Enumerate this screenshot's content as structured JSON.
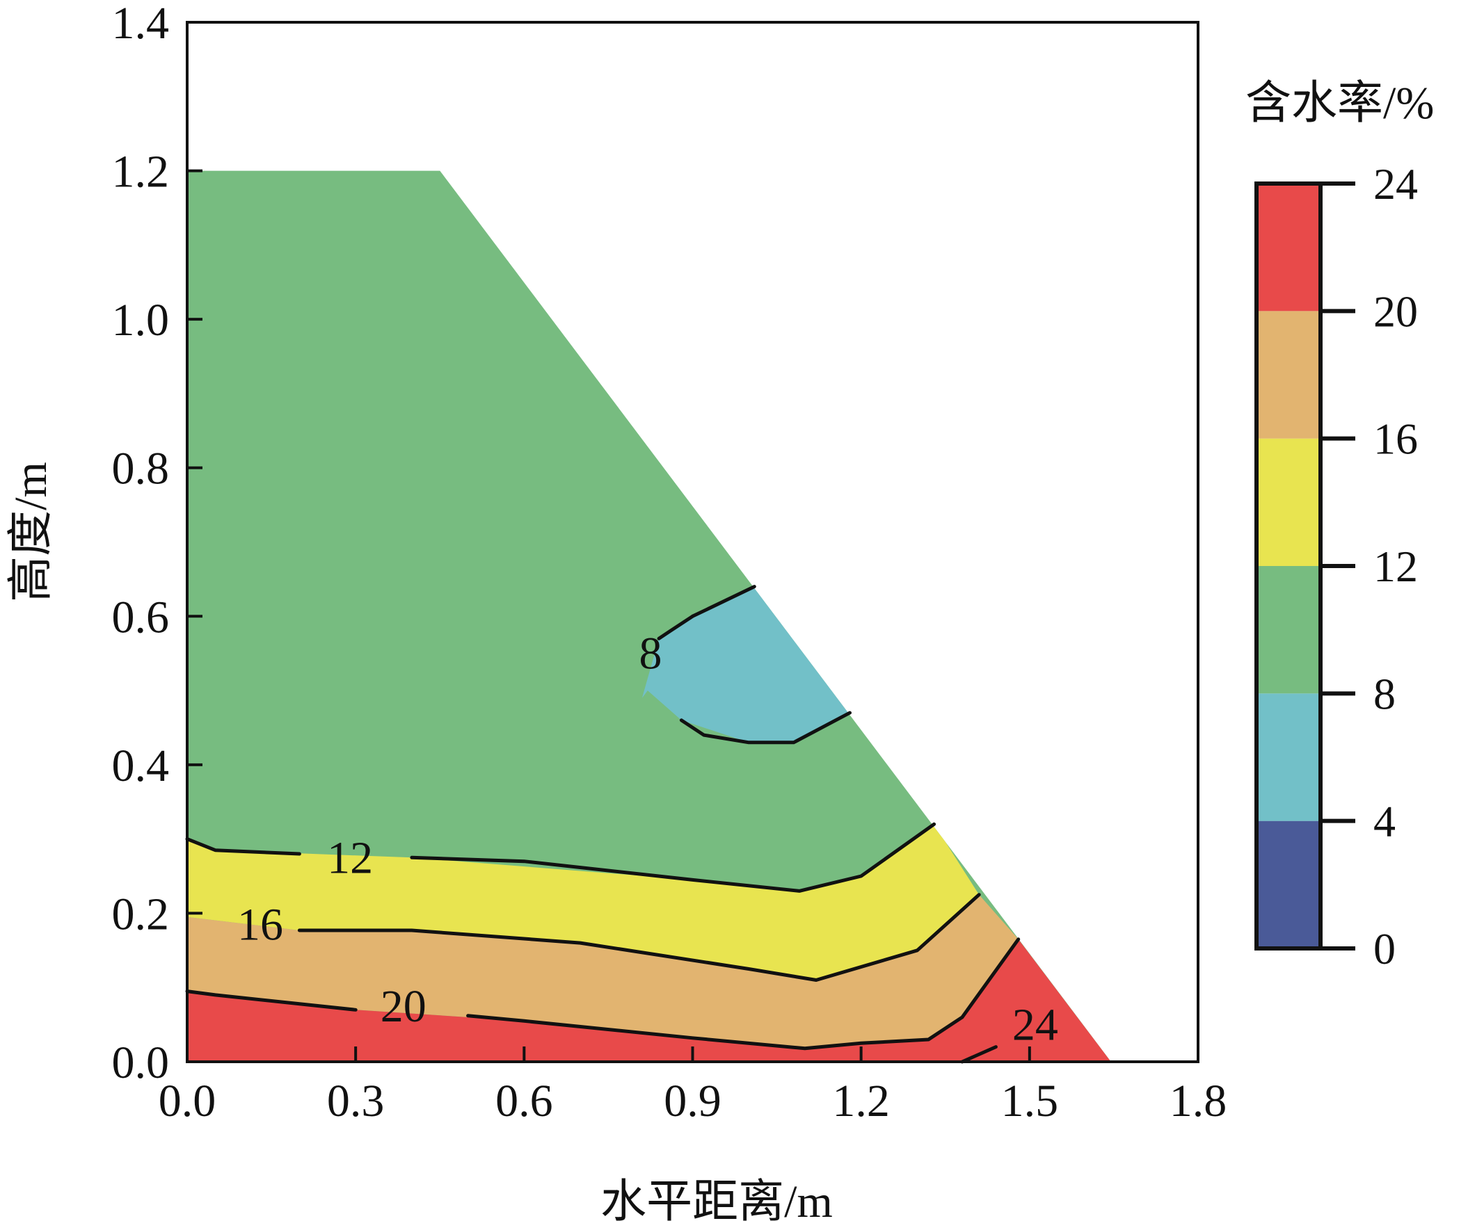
{
  "chart_data": {
    "type": "heatmap",
    "title": "",
    "xlabel": "水平距离/m",
    "ylabel": "高度/m",
    "xlim": [
      0.0,
      1.8
    ],
    "ylim": [
      0.0,
      1.4
    ],
    "x_ticks": [
      "0.0",
      "0.3",
      "0.6",
      "0.9",
      "1.2",
      "1.5",
      "1.8"
    ],
    "y_ticks": [
      "0.0",
      "0.2",
      "0.4",
      "0.6",
      "0.8",
      "1.0",
      "1.2",
      "1.4"
    ],
    "grid": false,
    "domain_outline": [
      [
        0.0,
        0.0
      ],
      [
        0.0,
        1.2
      ],
      [
        0.45,
        1.2
      ],
      [
        1.645,
        0.0
      ]
    ],
    "colorbar": {
      "title": "含水率/%",
      "levels": [
        0,
        4,
        8,
        12,
        16,
        20,
        24
      ],
      "tick_labels": [
        "0",
        "4",
        "8",
        "12",
        "16",
        "20",
        "24"
      ],
      "colors": [
        "#4a5a98",
        "#72c0c8",
        "#77bc80",
        "#e8e450",
        "#e2b470",
        "#e84a4a"
      ],
      "placement": "right"
    },
    "bands": [
      {
        "range": [
          4,
          8
        ],
        "color": "#72c0c8",
        "polygon": [
          [
            0.81,
            0.49
          ],
          [
            0.84,
            0.57
          ],
          [
            0.9,
            0.6
          ],
          [
            1.01,
            0.64
          ],
          [
            1.18,
            0.47
          ],
          [
            1.08,
            0.43
          ],
          [
            1.0,
            0.43
          ],
          [
            0.88,
            0.46
          ],
          [
            0.82,
            0.5
          ]
        ]
      },
      {
        "range": [
          8,
          12
        ],
        "color": "#77bc80"
      },
      {
        "range": [
          12,
          16
        ],
        "color": "#e8e450",
        "polygon": [
          [
            0.0,
            0.3
          ],
          [
            0.05,
            0.285
          ],
          [
            0.4,
            0.275
          ],
          [
            0.9,
            0.245
          ],
          [
            1.09,
            0.23
          ],
          [
            1.2,
            0.25
          ],
          [
            1.33,
            0.32
          ],
          [
            1.41,
            0.225
          ],
          [
            1.3,
            0.15
          ],
          [
            1.12,
            0.11
          ],
          [
            1.0,
            0.125
          ],
          [
            0.7,
            0.16
          ],
          [
            0.4,
            0.177
          ],
          [
            0.2,
            0.177
          ],
          [
            0.0,
            0.195
          ]
        ]
      },
      {
        "range": [
          16,
          20
        ],
        "color": "#e2b470",
        "polygon": [
          [
            0.0,
            0.195
          ],
          [
            0.2,
            0.177
          ],
          [
            0.4,
            0.177
          ],
          [
            0.7,
            0.16
          ],
          [
            1.0,
            0.125
          ],
          [
            1.12,
            0.11
          ],
          [
            1.3,
            0.15
          ],
          [
            1.41,
            0.225
          ],
          [
            1.48,
            0.165
          ],
          [
            1.38,
            0.06
          ],
          [
            1.32,
            0.03
          ],
          [
            1.2,
            0.025
          ],
          [
            1.1,
            0.018
          ],
          [
            0.9,
            0.032
          ],
          [
            0.6,
            0.055
          ],
          [
            0.3,
            0.07
          ],
          [
            0.05,
            0.09
          ],
          [
            0.0,
            0.095
          ]
        ]
      },
      {
        "range": [
          20,
          24
        ],
        "color": "#e84a4a",
        "polygon": [
          [
            0.0,
            0.095
          ],
          [
            0.05,
            0.09
          ],
          [
            0.3,
            0.07
          ],
          [
            0.6,
            0.055
          ],
          [
            0.9,
            0.032
          ],
          [
            1.1,
            0.018
          ],
          [
            1.2,
            0.025
          ],
          [
            1.32,
            0.03
          ],
          [
            1.38,
            0.06
          ],
          [
            1.48,
            0.165
          ],
          [
            1.645,
            0.0
          ],
          [
            0.0,
            0.0
          ]
        ]
      }
    ],
    "contours": [
      {
        "level": 8,
        "label": "8",
        "label_at": [
          0.825,
          0.55
        ],
        "points": [
          [
            0.9,
            0.6
          ],
          [
            1.01,
            0.64
          ]
        ]
      },
      {
        "level": 8,
        "label": "",
        "points": [
          [
            0.88,
            0.46
          ],
          [
            0.92,
            0.44
          ],
          [
            1.0,
            0.43
          ],
          [
            1.08,
            0.43
          ],
          [
            1.18,
            0.47
          ]
        ]
      },
      {
        "level": 8,
        "label": "",
        "points": [
          [
            0.84,
            0.57
          ],
          [
            0.86,
            0.58
          ],
          [
            0.9,
            0.6
          ]
        ]
      },
      {
        "level": 12,
        "label": "12",
        "label_at": [
          0.29,
          0.275
        ],
        "points": [
          [
            0.0,
            0.3
          ],
          [
            0.05,
            0.285
          ],
          [
            0.2,
            0.28
          ]
        ]
      },
      {
        "level": 12,
        "label": "",
        "points": [
          [
            0.4,
            0.275
          ],
          [
            0.6,
            0.27
          ],
          [
            0.9,
            0.245
          ],
          [
            1.09,
            0.23
          ],
          [
            1.2,
            0.25
          ],
          [
            1.33,
            0.32
          ]
        ]
      },
      {
        "level": 16,
        "label": "16",
        "label_at": [
          0.13,
          0.185
        ],
        "points": [
          [
            0.2,
            0.177
          ],
          [
            0.4,
            0.177
          ],
          [
            0.7,
            0.16
          ],
          [
            1.0,
            0.125
          ],
          [
            1.12,
            0.11
          ],
          [
            1.3,
            0.15
          ],
          [
            1.41,
            0.225
          ]
        ]
      },
      {
        "level": 20,
        "label": "20",
        "label_at": [
          0.385,
          0.075
        ],
        "points": [
          [
            0.0,
            0.095
          ],
          [
            0.05,
            0.09
          ],
          [
            0.3,
            0.07
          ]
        ]
      },
      {
        "level": 20,
        "label": "",
        "points": [
          [
            0.5,
            0.062
          ],
          [
            0.6,
            0.055
          ],
          [
            0.9,
            0.032
          ],
          [
            1.1,
            0.018
          ],
          [
            1.2,
            0.025
          ],
          [
            1.32,
            0.03
          ],
          [
            1.38,
            0.06
          ],
          [
            1.48,
            0.165
          ]
        ]
      },
      {
        "level": 24,
        "label": "24",
        "label_at": [
          1.51,
          0.05
        ],
        "points": [
          [
            1.38,
            0.0
          ],
          [
            1.44,
            0.02
          ]
        ]
      }
    ]
  }
}
